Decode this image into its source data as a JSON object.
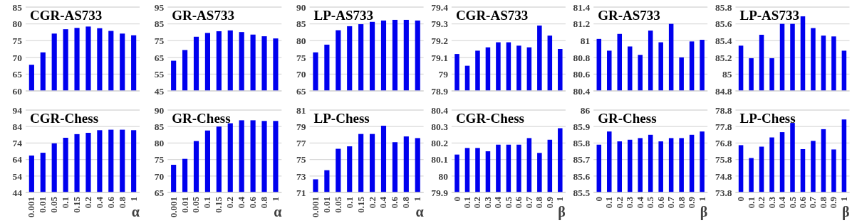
{
  "chart_data": [
    {
      "type": "bar",
      "title": "CGR-AS733",
      "categories": [
        null,
        null,
        null,
        null,
        null,
        null,
        null,
        null,
        null,
        null
      ],
      "values": [
        67.8,
        71.5,
        77.1,
        78.4,
        78.8,
        79.2,
        78.7,
        77.9,
        77.1,
        76.6
      ],
      "color": "#0000ee",
      "ylim": [
        60,
        85
      ],
      "yticks": [
        60,
        65,
        70,
        75,
        80,
        85
      ],
      "grid": "y"
    },
    {
      "type": "bar",
      "title": "GR-AS733",
      "categories": [
        null,
        null,
        null,
        null,
        null,
        null,
        null,
        null,
        null,
        null
      ],
      "values": [
        63.0,
        69.4,
        77.3,
        79.6,
        80.6,
        81.1,
        80.1,
        78.6,
        77.6,
        76.3
      ],
      "color": "#0000ee",
      "ylim": [
        45,
        95
      ],
      "yticks": [
        45,
        55,
        65,
        75,
        85,
        95
      ],
      "grid": "y"
    },
    {
      "type": "bar",
      "title": "LP-AS733",
      "categories": [
        null,
        null,
        null,
        null,
        null,
        null,
        null,
        null,
        null,
        null
      ],
      "values": [
        76.5,
        78.8,
        83.1,
        84.3,
        84.9,
        85.6,
        86.0,
        86.2,
        86.2,
        86.0
      ],
      "color": "#0000ee",
      "ylim": [
        65,
        90
      ],
      "yticks": [
        65,
        70,
        75,
        80,
        85,
        90
      ],
      "grid": "y"
    },
    {
      "type": "bar",
      "title": "CGR-AS733",
      "categories": [
        null,
        null,
        null,
        null,
        null,
        null,
        null,
        null,
        null,
        null,
        null
      ],
      "values": [
        79.12,
        79.05,
        79.14,
        79.16,
        79.19,
        79.19,
        79.17,
        79.16,
        79.29,
        79.23,
        79.15
      ],
      "color": "#0000ee",
      "ylim": [
        78.9,
        79.4
      ],
      "yticks": [
        {
          "value": 78.9,
          "label": "78.9"
        },
        {
          "value": 79,
          "label": "79"
        },
        {
          "value": 79.1,
          "label": "79.1"
        },
        {
          "value": 79.2,
          "label": "79.2"
        },
        {
          "value": 79.3,
          "label": "79.3"
        },
        {
          "value": 79.4,
          "label": "79.4"
        }
      ],
      "grid": "y"
    },
    {
      "type": "bar",
      "title": "GR-AS733",
      "categories": [
        null,
        null,
        null,
        null,
        null,
        null,
        null,
        null,
        null,
        null,
        null
      ],
      "values": [
        81.02,
        80.88,
        81.08,
        80.93,
        80.83,
        81.12,
        80.98,
        81.2,
        80.8,
        80.99,
        81.01
      ],
      "color": "#0000ee",
      "ylim": [
        80.4,
        81.4
      ],
      "yticks": [
        {
          "value": 80.4,
          "label": "80.4"
        },
        {
          "value": 80.6,
          "label": "80.6"
        },
        {
          "value": 80.8,
          "label": "80.8"
        },
        {
          "value": 81,
          "label": "81"
        },
        {
          "value": 81.2,
          "label": "81.2"
        },
        {
          "value": 81.4,
          "label": "81.4"
        }
      ],
      "grid": "y"
    },
    {
      "type": "bar",
      "title": "LP-AS733",
      "categories": [
        null,
        null,
        null,
        null,
        null,
        null,
        null,
        null,
        null,
        null,
        null
      ],
      "values": [
        85.34,
        85.19,
        85.47,
        85.19,
        85.6,
        85.6,
        85.69,
        85.55,
        85.46,
        85.45,
        85.28
      ],
      "color": "#0000ee",
      "ylim": [
        84.8,
        85.8
      ],
      "yticks": [
        {
          "value": 84.8,
          "label": "84.8"
        },
        {
          "value": 85,
          "label": "85"
        },
        {
          "value": 85.2,
          "label": "85.2"
        },
        {
          "value": 85.4,
          "label": "85.4"
        },
        {
          "value": 85.6,
          "label": "85.6"
        },
        {
          "value": 85.8,
          "label": "85.8"
        }
      ],
      "grid": "y"
    },
    {
      "type": "bar",
      "title": "CGR-Chess",
      "xlabel": "α",
      "categories": [
        "0.001",
        "0.01",
        "0.05",
        "0.1",
        "0.15",
        "0.2",
        "0.4",
        "0.6",
        "0.8",
        "1"
      ],
      "values": [
        66.4,
        68.1,
        73.8,
        77.2,
        79.4,
        80.2,
        81.8,
        82.1,
        82.1,
        81.8
      ],
      "color": "#0000ee",
      "ylim": [
        44,
        94
      ],
      "yticks": [
        44,
        54,
        64,
        74,
        84,
        94
      ],
      "grid": "y"
    },
    {
      "type": "bar",
      "title": "GR-Chess",
      "xlabel": "α",
      "categories": [
        "0.001",
        "0.01",
        "0.05",
        "0.1",
        "0.15",
        "0.2",
        "0.4",
        "0.6",
        "0.8",
        "1"
      ],
      "values": [
        73.4,
        75.2,
        80.6,
        83.8,
        85.0,
        86.0,
        86.9,
        86.9,
        86.7,
        86.7
      ],
      "color": "#0000ee",
      "ylim": [
        65,
        90
      ],
      "yticks": [
        65,
        70,
        75,
        80,
        85,
        90
      ],
      "grid": "y"
    },
    {
      "type": "bar",
      "title": "LP-Chess",
      "xlabel": "α",
      "categories": [
        "0.001",
        "0.01",
        "0.05",
        "0.1",
        "0.15",
        "0.2",
        "0.4",
        "0.6",
        "0.8",
        "1"
      ],
      "values": [
        72.6,
        73.7,
        76.3,
        76.6,
        78.1,
        78.1,
        79.1,
        77.1,
        77.8,
        77.6
      ],
      "color": "#0000ee",
      "ylim": [
        71,
        81
      ],
      "yticks": [
        71,
        73,
        75,
        77,
        79,
        81
      ],
      "grid": "y"
    },
    {
      "type": "bar",
      "title": "CGR-Chess",
      "xlabel": "β",
      "categories": [
        "0",
        "0.1",
        "0.2",
        "0.3",
        "0.4",
        "0.5",
        "0.6",
        "0.7",
        "0.8",
        "0.9",
        "1"
      ],
      "values": [
        80.13,
        80.17,
        80.17,
        80.15,
        80.19,
        80.19,
        80.19,
        80.23,
        80.14,
        80.22,
        80.29
      ],
      "color": "#0000ee",
      "ylim": [
        79.9,
        80.4
      ],
      "yticks": [
        {
          "value": 79.9,
          "label": "79.9"
        },
        {
          "value": 80,
          "label": "80"
        },
        {
          "value": 80.1,
          "label": "80.1"
        },
        {
          "value": 80.2,
          "label": "80.2"
        },
        {
          "value": 80.3,
          "label": "80.3"
        },
        {
          "value": 80.4,
          "label": "80.4"
        }
      ],
      "grid": "y"
    },
    {
      "type": "bar",
      "title": "GR-Chess",
      "xlabel": "β",
      "categories": [
        "0",
        "0.1",
        "0.2",
        "0.3",
        "0.4",
        "0.5",
        "0.6",
        "0.7",
        "0.8",
        "0.9",
        "1"
      ],
      "values": [
        85.79,
        85.87,
        85.81,
        85.82,
        85.83,
        85.85,
        85.81,
        85.83,
        85.83,
        85.85,
        85.87
      ],
      "color": "#0000ee",
      "ylim": [
        85.5,
        86
      ],
      "yticks": [
        {
          "value": 85.5,
          "label": "85.5"
        },
        {
          "value": 85.6,
          "label": "85.6"
        },
        {
          "value": 85.7,
          "label": "85.7"
        },
        {
          "value": 85.8,
          "label": "85.8"
        },
        {
          "value": 85.9,
          "label": "85.9"
        },
        {
          "value": 86,
          "label": "86"
        }
      ],
      "grid": "y"
    },
    {
      "type": "bar",
      "title": "LP-Chess",
      "xlabel": "β",
      "categories": [
        "0",
        "0.1",
        "0.2",
        "0.3",
        "0.4",
        "0.5",
        "0.6",
        "0.7",
        "0.8",
        "0.9",
        "1"
      ],
      "values": [
        76.67,
        75.89,
        76.58,
        77.14,
        77.46,
        78.02,
        76.43,
        76.93,
        77.64,
        76.41,
        78.23
      ],
      "color": "#0000ee",
      "ylim": [
        73.8,
        78.8
      ],
      "yticks": [
        {
          "value": 73.8,
          "label": "73.8"
        },
        {
          "value": 74.8,
          "label": "74.8"
        },
        {
          "value": 75.8,
          "label": "75.8"
        },
        {
          "value": 76.8,
          "label": "76.8"
        },
        {
          "value": 77.8,
          "label": "77.8"
        },
        {
          "value": 78.8,
          "label": "78.8"
        }
      ],
      "grid": "y"
    }
  ]
}
